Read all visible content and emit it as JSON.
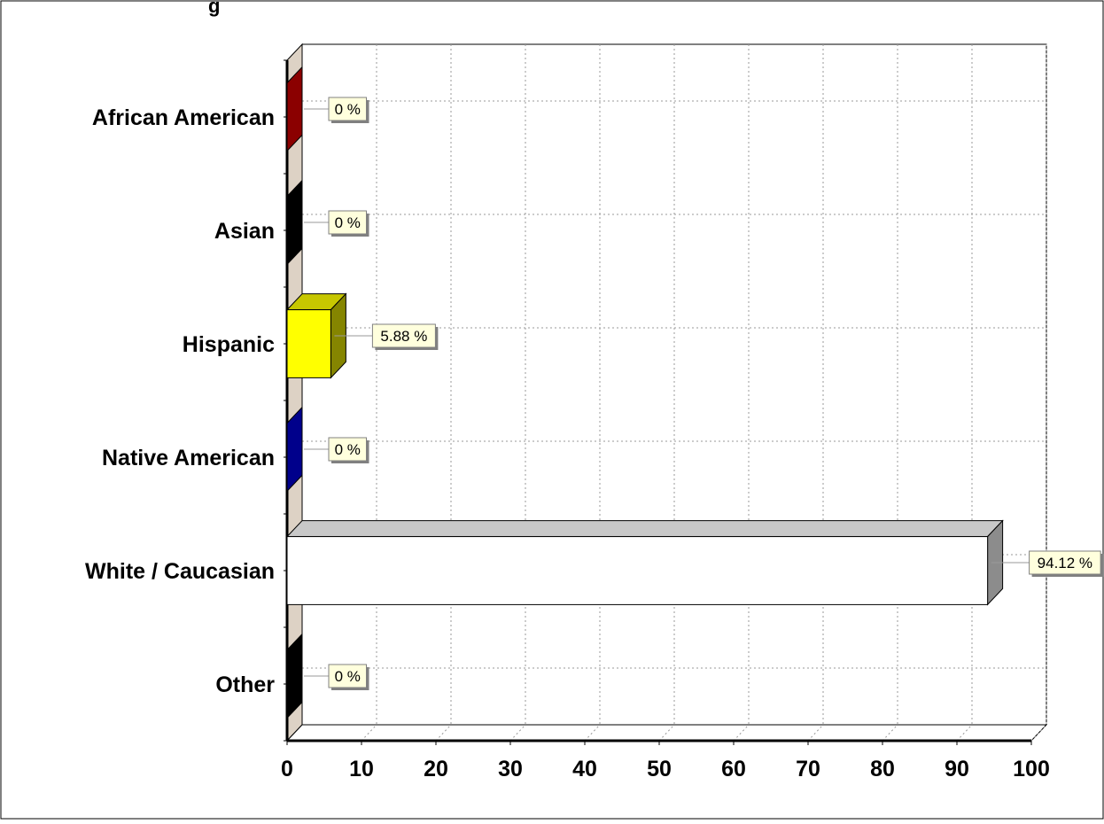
{
  "chart_data": {
    "type": "bar",
    "orientation": "horizontal",
    "three_d": true,
    "categories": [
      "African American",
      "Asian",
      "Hispanic",
      "Native American",
      "White / Caucasian",
      "Other"
    ],
    "values": [
      0,
      0,
      5.88,
      0,
      94.12,
      0
    ],
    "data_labels": [
      "0 %",
      "0 %",
      "5.88 %",
      "0 %",
      "94.12 %",
      "0 %"
    ],
    "bar_colors": [
      "#8B0000",
      "#000000",
      "#FFFF00",
      "#00008B",
      "#FFFFFF",
      "#000000"
    ],
    "xlim": [
      0,
      100
    ],
    "xticks": [
      0,
      10,
      20,
      30,
      40,
      50,
      60,
      70,
      80,
      90,
      100
    ],
    "grid": true,
    "legend": "none",
    "title_fragment": "g"
  }
}
